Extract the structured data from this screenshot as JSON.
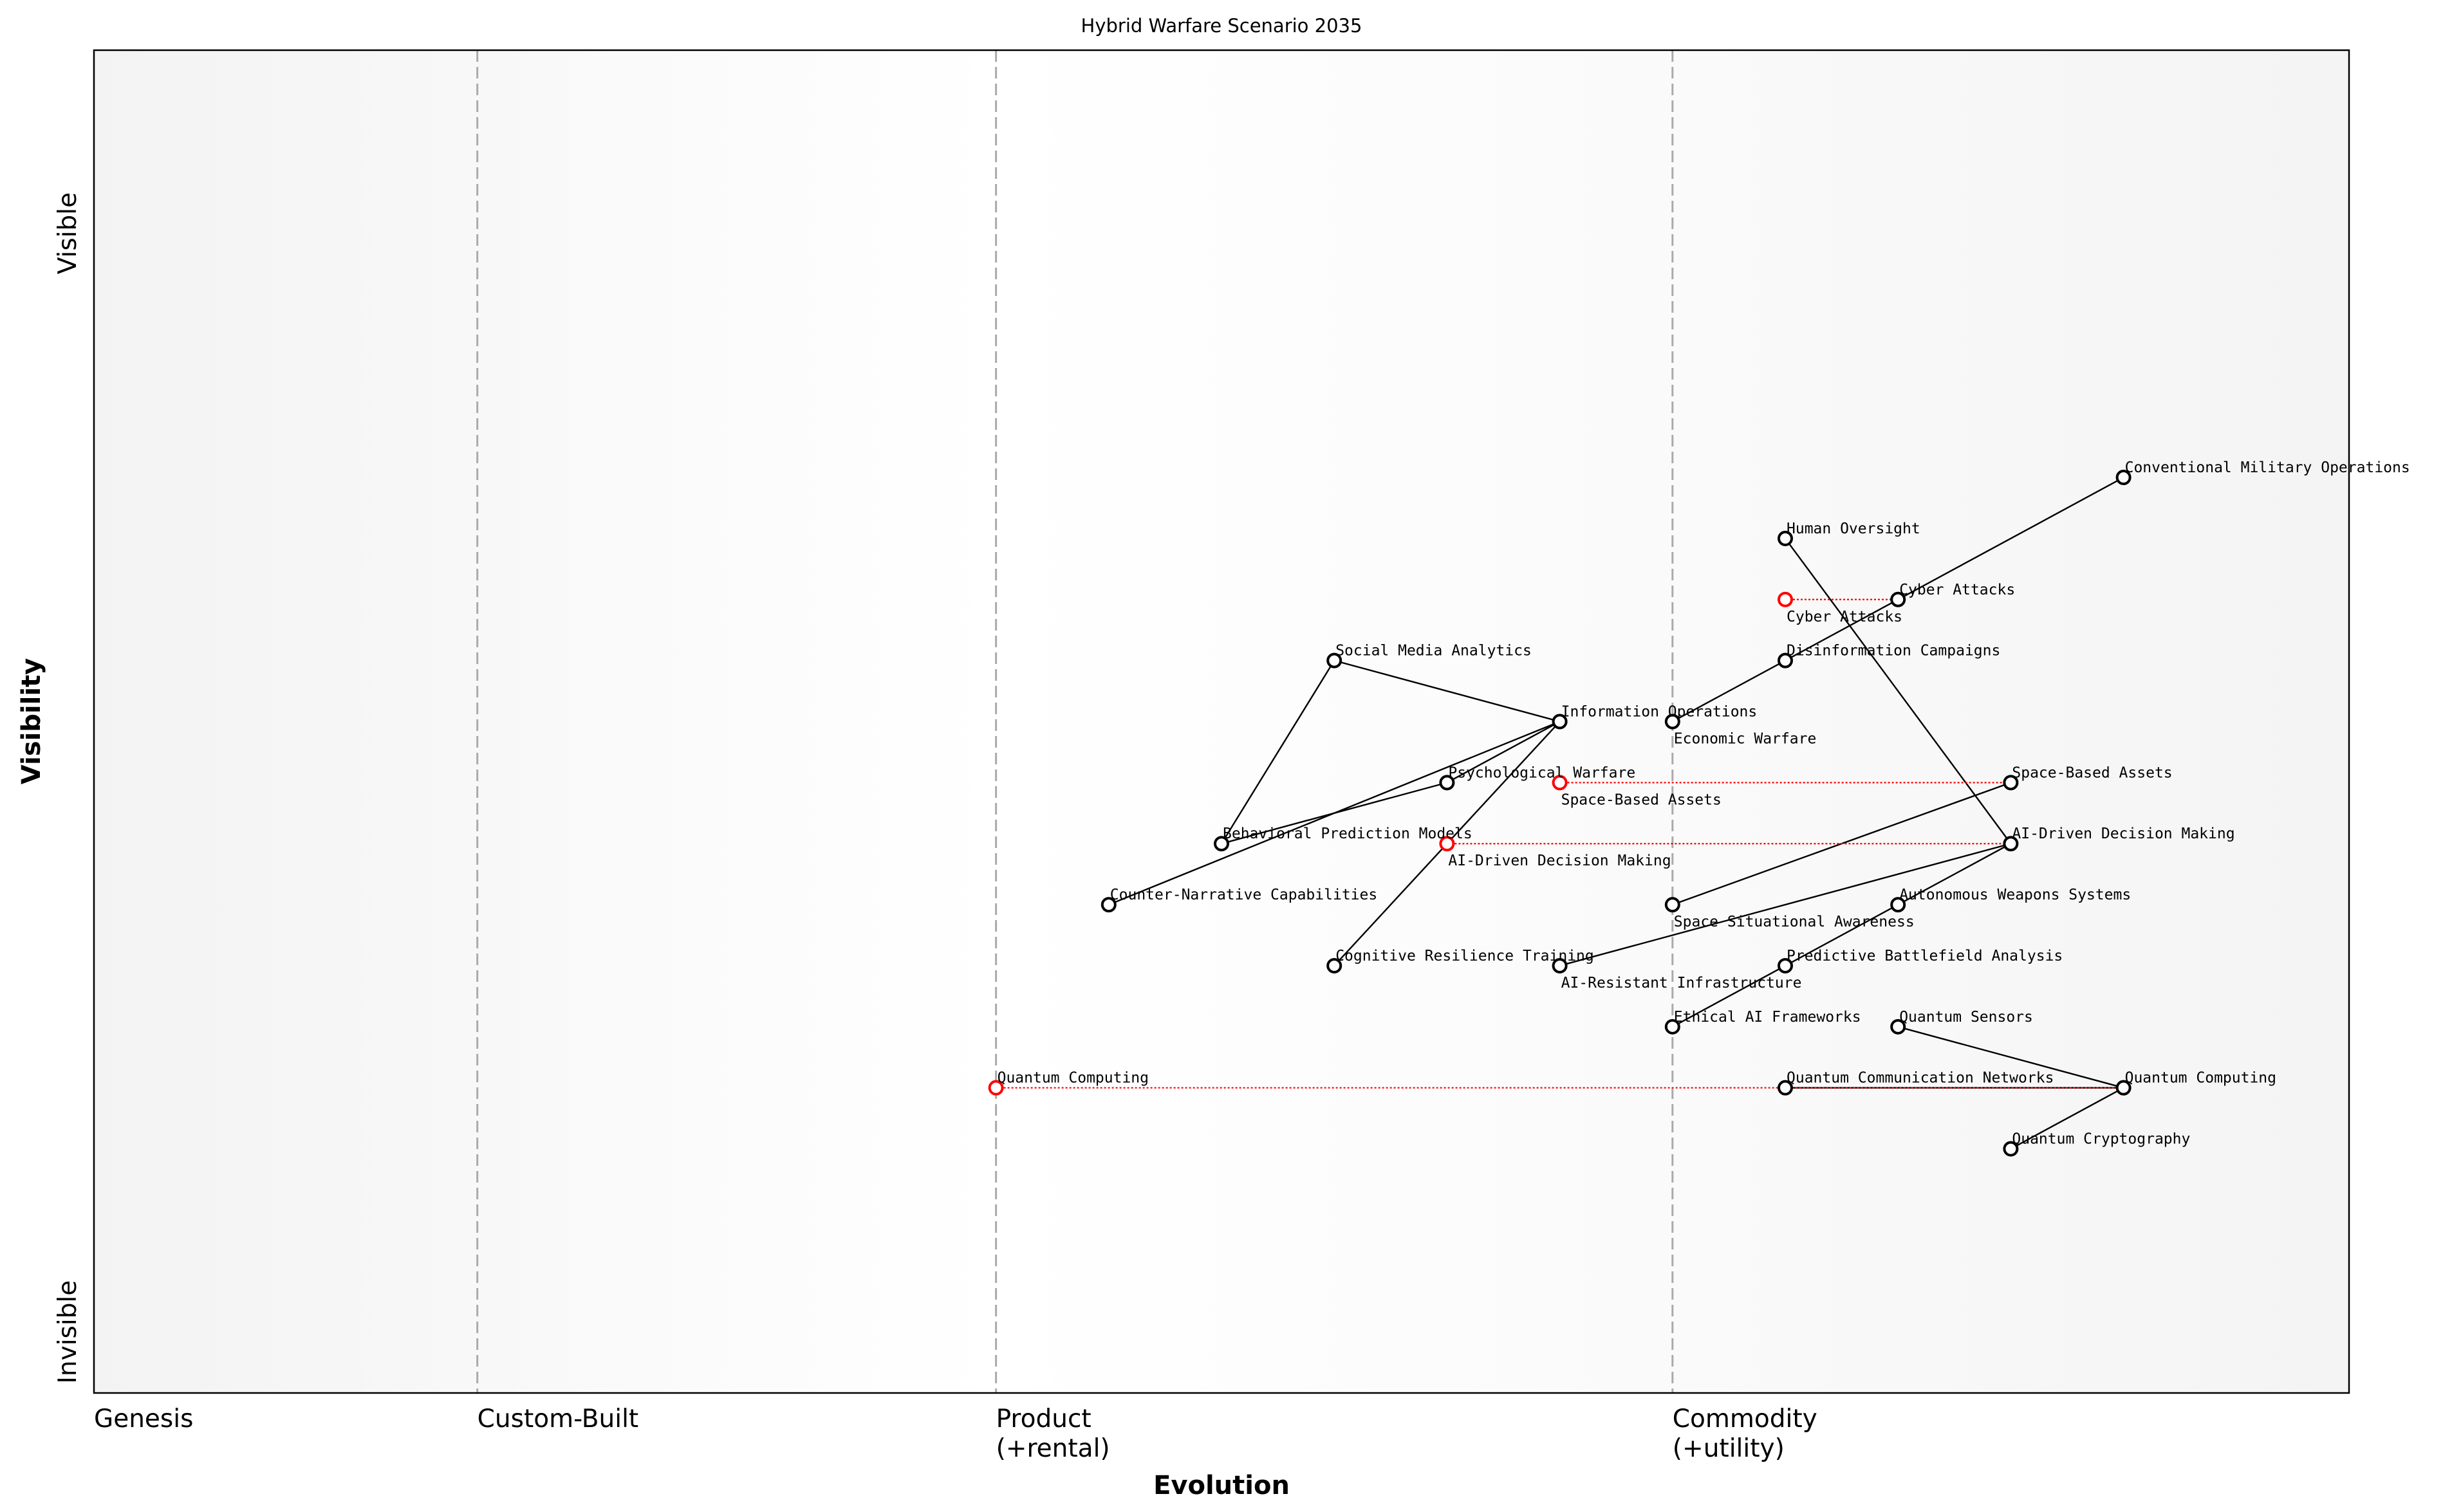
{
  "chart_data": {
    "type": "scatter",
    "title": "Hybrid Warfare Scenario 2035",
    "xlabel": "Evolution",
    "ylabel": "Visibility",
    "xlim": [
      0,
      1
    ],
    "ylim": [
      0,
      1.1
    ],
    "grid": false,
    "x_ticks": [
      {
        "value": 0,
        "label": [
          "Genesis"
        ]
      },
      {
        "value": 0.17,
        "label": [
          "Custom-Built"
        ]
      },
      {
        "value": 0.4,
        "label": [
          "Product",
          "(+rental)"
        ]
      },
      {
        "value": 0.7,
        "label": [
          "Commodity",
          "(+utility)"
        ]
      }
    ],
    "stage_dividers": [
      0.17,
      0.4,
      0.7
    ],
    "y_ticks": [
      {
        "value": 0.05,
        "label": "Invisible"
      },
      {
        "value": 0.95,
        "label": "Visible"
      }
    ],
    "colors": {
      "node": "#000000",
      "evolved_node": "#ff0000",
      "edge": "#000000",
      "evolution_link": "#ff0000",
      "divider": "#aaaaaa"
    },
    "nodes": [
      {
        "id": "cmo",
        "label": "Conventional Military Operations",
        "x": 0.9,
        "y": 0.75
      },
      {
        "id": "ho",
        "label": "Human Oversight",
        "x": 0.75,
        "y": 0.7
      },
      {
        "id": "ca_old",
        "label": "Cyber Attacks",
        "x": 0.75,
        "y": 0.65,
        "evolved": true
      },
      {
        "id": "ca",
        "label": "Cyber Attacks",
        "x": 0.8,
        "y": 0.65
      },
      {
        "id": "dc",
        "label": "Disinformation Campaigns",
        "x": 0.75,
        "y": 0.6
      },
      {
        "id": "sma",
        "label": "Social Media Analytics",
        "x": 0.55,
        "y": 0.6
      },
      {
        "id": "io",
        "label": "Information Operations",
        "x": 0.65,
        "y": 0.55
      },
      {
        "id": "ew",
        "label": "Economic Warfare",
        "x": 0.7,
        "y": 0.55
      },
      {
        "id": "pw",
        "label": "Psychological Warfare",
        "x": 0.6,
        "y": 0.5
      },
      {
        "id": "sba_old",
        "label": "Space-Based Assets",
        "x": 0.65,
        "y": 0.5,
        "evolved": true
      },
      {
        "id": "sba",
        "label": "Space-Based Assets",
        "x": 0.85,
        "y": 0.5
      },
      {
        "id": "bpm",
        "label": "Behavioral Prediction Models",
        "x": 0.5,
        "y": 0.45
      },
      {
        "id": "aidm_old",
        "label": "AI-Driven Decision Making",
        "x": 0.6,
        "y": 0.45,
        "evolved": true
      },
      {
        "id": "aidm",
        "label": "AI-Driven Decision Making",
        "x": 0.85,
        "y": 0.45
      },
      {
        "id": "ncc",
        "label": "Counter-Narrative Capabilities",
        "x": 0.45,
        "y": 0.4
      },
      {
        "id": "ssa",
        "label": "Space Situational Awareness",
        "x": 0.7,
        "y": 0.4
      },
      {
        "id": "aws",
        "label": "Autonomous Weapons Systems",
        "x": 0.8,
        "y": 0.4
      },
      {
        "id": "crt",
        "label": "Cognitive Resilience Training",
        "x": 0.55,
        "y": 0.35
      },
      {
        "id": "ari",
        "label": "AI-Resistant Infrastructure",
        "x": 0.65,
        "y": 0.35
      },
      {
        "id": "pba",
        "label": "Predictive Battlefield Analysis",
        "x": 0.75,
        "y": 0.35
      },
      {
        "id": "eaf",
        "label": "Ethical AI Frameworks",
        "x": 0.7,
        "y": 0.3
      },
      {
        "id": "qs",
        "label": "Quantum Sensors",
        "x": 0.8,
        "y": 0.3
      },
      {
        "id": "qc_old",
        "label": "Quantum Computing",
        "x": 0.4,
        "y": 0.25,
        "evolved": true
      },
      {
        "id": "qc",
        "label": "Quantum Computing",
        "x": 0.9,
        "y": 0.25
      },
      {
        "id": "qcn",
        "label": "Quantum Communication Networks",
        "x": 0.75,
        "y": 0.25
      },
      {
        "id": "qcr",
        "label": "Quantum Cryptography",
        "x": 0.85,
        "y": 0.2
      }
    ],
    "edges": [
      [
        "cmo",
        "ca"
      ],
      [
        "ca",
        "dc"
      ],
      [
        "dc",
        "ew"
      ],
      [
        "ho",
        "aidm"
      ],
      [
        "sma",
        "io"
      ],
      [
        "sma",
        "bpm"
      ],
      [
        "io",
        "pw"
      ],
      [
        "io",
        "ncc"
      ],
      [
        "io",
        "crt"
      ],
      [
        "pw",
        "bpm"
      ],
      [
        "sba",
        "ssa"
      ],
      [
        "aidm",
        "ari"
      ],
      [
        "aidm",
        "aws"
      ],
      [
        "aws",
        "pba"
      ],
      [
        "pba",
        "eaf"
      ],
      [
        "qs",
        "qc"
      ],
      [
        "qcn",
        "qc"
      ],
      [
        "qc",
        "qcr"
      ]
    ],
    "evolution_links": [
      [
        "ca_old",
        "ca"
      ],
      [
        "sba_old",
        "sba"
      ],
      [
        "aidm_old",
        "aidm"
      ],
      [
        "qc_old",
        "qc"
      ]
    ]
  }
}
